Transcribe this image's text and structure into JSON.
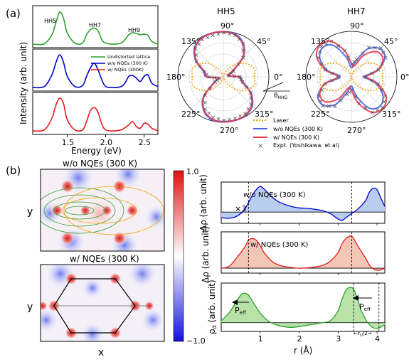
{
  "panel_a": {
    "label": "(a)",
    "ylabel": "Intensity (arb. unit)",
    "xlabel": "Energy (eV)",
    "peak_labels": [
      "HH5",
      "HH7",
      "HH9"
    ],
    "legend": [
      "Undistorted lattice",
      "w/o NQEs (300 K)",
      "w/ NQEs (300K)"
    ],
    "polar_titles": [
      "HH5",
      "HH7"
    ],
    "polar_legend": [
      "Laser",
      "w/o NQEs (300 K)",
      "w/ NQEs (300 K)",
      "Expt. (Yoshikawa. et al)"
    ],
    "angle_labels": [
      "0°",
      "45°",
      "90°",
      "135°",
      "180°",
      "225°",
      "270°",
      "315°"
    ],
    "theta_label": "θ",
    "theta_sub": "HHG"
  },
  "panel_b": {
    "label": "(b)",
    "map_titles": [
      "w/o NQEs (300 K)",
      "w/ NQEs (300 K)"
    ],
    "axis_y": "y",
    "axis_x": "x",
    "colorbar_label": "Δρ (arb. unit)",
    "colorbar_ticks": [
      "1.0",
      "−1.0"
    ],
    "line_titles": [
      "w/o NQEs (300 K)",
      "w/ NQEs (300 K)"
    ],
    "scale_note": "×3",
    "ylabel_top": "Δρ (arb. unit)",
    "ylabel_bottom_main": "ρ",
    "ylabel_bottom_sub": "d",
    "ylabel_bottom_rest": " (arb. unit)",
    "xlabel": "r (Å)",
    "peff_main": "P",
    "peff_sub": "eff",
    "rcl_main": "←r",
    "rcl_sub": "cl",
    "rcl_rest": "/2→"
  },
  "chart_data": [
    {
      "type": "line",
      "xlabel": "Energy (eV)",
      "ylabel": "Intensity (arb. unit)",
      "x_ticks": [
        "1.5",
        "2.0",
        "2.5"
      ],
      "xlim": [
        1.05,
        2.68
      ],
      "series": [
        {
          "name": "Undistorted lattice",
          "color": "#2ca02c",
          "x": [
            1.05,
            1.2,
            1.3,
            1.35,
            1.4,
            1.45,
            1.5,
            1.6,
            1.7,
            1.75,
            1.8,
            1.85,
            1.9,
            1.95,
            2.0,
            2.1,
            2.2,
            2.25,
            2.3,
            2.35,
            2.4,
            2.45,
            2.5,
            2.55,
            2.6,
            2.68
          ],
          "y": [
            0.02,
            0.03,
            0.3,
            0.65,
            0.98,
            0.8,
            0.35,
            0.05,
            0.05,
            0.3,
            0.45,
            0.5,
            0.42,
            0.15,
            0.05,
            0.02,
            0.05,
            0.15,
            0.3,
            0.36,
            0.34,
            0.3,
            0.32,
            0.28,
            0.1,
            0.02
          ]
        },
        {
          "name": "w/o NQEs (300 K)",
          "color": "#0000cc",
          "x": [
            1.05,
            1.2,
            1.3,
            1.35,
            1.4,
            1.45,
            1.5,
            1.6,
            1.7,
            1.75,
            1.8,
            1.85,
            1.9,
            1.95,
            2.0,
            2.1,
            2.2,
            2.25,
            2.3,
            2.35,
            2.4,
            2.45,
            2.5,
            2.55,
            2.6,
            2.68
          ],
          "y": [
            0.02,
            0.05,
            0.4,
            0.75,
            1.0,
            0.78,
            0.35,
            0.05,
            0.08,
            0.35,
            0.6,
            0.75,
            0.55,
            0.25,
            0.05,
            0.02,
            0.05,
            0.15,
            0.35,
            0.38,
            0.3,
            0.2,
            0.35,
            0.4,
            0.15,
            0.05
          ]
        },
        {
          "name": "w/ NQEs (300K)",
          "color": "#e31a1c",
          "x": [
            1.05,
            1.2,
            1.3,
            1.35,
            1.4,
            1.45,
            1.5,
            1.6,
            1.7,
            1.75,
            1.8,
            1.85,
            1.9,
            1.95,
            2.0,
            2.1,
            2.2,
            2.25,
            2.3,
            2.35,
            2.4,
            2.45,
            2.5,
            2.55,
            2.6,
            2.68
          ],
          "y": [
            0.02,
            0.05,
            0.4,
            0.78,
            1.0,
            0.85,
            0.35,
            0.05,
            0.05,
            0.3,
            0.62,
            0.72,
            0.58,
            0.22,
            0.05,
            0.02,
            0.05,
            0.12,
            0.2,
            0.3,
            0.15,
            0.1,
            0.25,
            0.22,
            0.1,
            0.02
          ]
        }
      ]
    },
    {
      "type": "line",
      "title": "HH5",
      "polar": true,
      "angle_unit": "degrees",
      "angles": [
        0,
        15,
        30,
        45,
        60,
        75,
        90,
        105,
        120,
        135,
        150,
        165,
        180,
        195,
        210,
        225,
        240,
        255,
        270,
        285,
        300,
        315,
        330,
        345,
        360
      ],
      "series": [
        {
          "name": "w/o NQEs (300 K)",
          "color": "#4a63e8",
          "r": [
            0.38,
            0.1,
            0.22,
            0.62,
            0.86,
            0.98,
            0.98,
            0.99,
            0.98,
            0.9,
            0.7,
            0.45,
            0.38,
            0.1,
            0.22,
            0.62,
            0.86,
            0.98,
            0.98,
            0.99,
            0.98,
            0.9,
            0.7,
            0.45,
            0.38
          ]
        },
        {
          "name": "w/ NQEs (300 K)",
          "color": "#e8374c",
          "r": [
            0.36,
            0.1,
            0.2,
            0.6,
            0.84,
            0.96,
            0.99,
            0.99,
            0.97,
            0.88,
            0.68,
            0.42,
            0.36,
            0.1,
            0.2,
            0.6,
            0.84,
            0.96,
            0.99,
            0.99,
            0.97,
            0.88,
            0.68,
            0.42,
            0.36
          ]
        },
        {
          "name": "Laser",
          "color": "#f2a100",
          "r": [
            0.68,
            0.7,
            0.58,
            0.4,
            0.18,
            0.05,
            0.02,
            0.05,
            0.18,
            0.4,
            0.58,
            0.7,
            0.68,
            0.7,
            0.58,
            0.4,
            0.18,
            0.05,
            0.02,
            0.05,
            0.18,
            0.4,
            0.58,
            0.7,
            0.68
          ]
        },
        {
          "name": "Expt. (Yoshikawa. et al)",
          "color": "#555555",
          "r": [
            0.35,
            0.12,
            0.25,
            0.6,
            0.85,
            0.95,
            0.97,
            0.95,
            0.95,
            0.88,
            0.7,
            0.45,
            0.32,
            0.1,
            0.22,
            0.58,
            0.82,
            0.92,
            0.95,
            0.95,
            0.93,
            0.85,
            0.68,
            0.42,
            0.35
          ]
        }
      ]
    },
    {
      "type": "line",
      "title": "HH7",
      "polar": true,
      "angle_unit": "degrees",
      "angles": [
        0,
        15,
        30,
        45,
        60,
        75,
        90,
        105,
        120,
        135,
        150,
        165,
        180,
        195,
        210,
        225,
        240,
        255,
        270,
        285,
        300,
        315,
        330,
        345,
        360
      ],
      "series": [
        {
          "name": "w/o NQEs (300 K)",
          "color": "#4a63e8",
          "r": [
            0.25,
            0.6,
            0.85,
            0.88,
            0.7,
            0.35,
            0.2,
            0.45,
            0.8,
            0.9,
            0.8,
            0.55,
            0.25,
            0.6,
            0.85,
            0.88,
            0.7,
            0.35,
            0.2,
            0.45,
            0.8,
            0.9,
            0.8,
            0.55,
            0.25
          ]
        },
        {
          "name": "w/ NQEs (300 K)",
          "color": "#e8374c",
          "r": [
            0.3,
            0.62,
            0.8,
            0.78,
            0.55,
            0.25,
            0.3,
            0.6,
            0.9,
            0.98,
            0.88,
            0.6,
            0.3,
            0.62,
            0.8,
            0.78,
            0.55,
            0.25,
            0.3,
            0.6,
            0.9,
            0.98,
            0.88,
            0.6,
            0.3
          ]
        },
        {
          "name": "Laser",
          "color": "#f2a100",
          "r": [
            0.68,
            0.7,
            0.58,
            0.4,
            0.18,
            0.05,
            0.02,
            0.05,
            0.18,
            0.4,
            0.58,
            0.7,
            0.68,
            0.7,
            0.58,
            0.4,
            0.18,
            0.05,
            0.02,
            0.05,
            0.18,
            0.4,
            0.58,
            0.7,
            0.68
          ]
        },
        {
          "name": "Expt. (Yoshikawa. et al)",
          "color": "#555555",
          "r": [
            0.3,
            0.6,
            0.85,
            0.9,
            0.75,
            0.4,
            0.28,
            0.6,
            0.9,
            0.95,
            0.85,
            0.6,
            0.3,
            0.6,
            0.85,
            0.9,
            0.75,
            0.4,
            0.28,
            0.6,
            0.9,
            0.95,
            0.85,
            0.6,
            0.3
          ]
        }
      ]
    },
    {
      "type": "area",
      "title": "w/o NQEs (300 K)",
      "ylabel": "Δρ (arb. unit)",
      "xlim": [
        0,
        4.2
      ],
      "x_ticks": [
        1,
        2,
        3,
        4
      ],
      "vlines": [
        0.7,
        3.35
      ],
      "series": [
        {
          "name": "w/o NQEs (300 K)",
          "color": "#0000cc",
          "x": [
            0,
            0.2,
            0.4,
            0.6,
            0.8,
            0.9,
            1.0,
            1.1,
            1.3,
            1.5,
            1.8,
            2.0,
            2.3,
            2.6,
            2.8,
            2.9,
            3.0,
            3.1,
            3.2,
            3.35,
            3.5,
            3.7,
            3.8,
            3.9,
            4.0,
            4.1,
            4.2
          ],
          "y": [
            -0.2,
            -0.22,
            -0.15,
            0.1,
            0.6,
            0.8,
            0.92,
            0.82,
            0.55,
            0.35,
            0.2,
            0.15,
            0.12,
            0.05,
            -0.05,
            -0.15,
            -0.25,
            -0.3,
            -0.2,
            -0.05,
            0.1,
            0.4,
            0.7,
            0.85,
            0.8,
            0.5,
            0.2
          ]
        }
      ]
    },
    {
      "type": "area",
      "title": "w/ NQEs (300 K)",
      "xlim": [
        0,
        4.2
      ],
      "x_ticks": [
        1,
        2,
        3,
        4
      ],
      "vlines": [
        0.7,
        3.35
      ],
      "series": [
        {
          "name": "w/ NQEs (300 K)",
          "color": "#e31a1c",
          "x": [
            0,
            0.2,
            0.4,
            0.6,
            0.7,
            0.8,
            0.9,
            1.0,
            1.1,
            1.3,
            1.5,
            1.8,
            2.0,
            2.3,
            2.6,
            2.8,
            3.0,
            3.1,
            3.2,
            3.3,
            3.35,
            3.4,
            3.5,
            3.7,
            3.8,
            3.9,
            4.0,
            4.1,
            4.2
          ],
          "y": [
            0,
            0.05,
            0.3,
            0.6,
            0.8,
            0.85,
            0.8,
            0.65,
            0.45,
            0.2,
            0.08,
            0.02,
            0.0,
            0.02,
            0.08,
            0.2,
            0.45,
            0.7,
            0.85,
            0.92,
            0.92,
            0.85,
            0.65,
            0.3,
            0.1,
            -0.02,
            -0.06,
            -0.05,
            0.0
          ]
        }
      ]
    },
    {
      "type": "area",
      "ylabel": "ρd (arb. unit)",
      "xlabel": "r (Å)",
      "xlim": [
        0,
        4.2
      ],
      "x_ticks": [
        1,
        2,
        3,
        4
      ],
      "x_ticklabels": [
        "1",
        "2",
        "3",
        "4"
      ],
      "vlines": [
        3.4,
        4.05
      ],
      "series": [
        {
          "name": "ρd",
          "color": "#2ca02c",
          "x": [
            0,
            0.2,
            0.4,
            0.5,
            0.6,
            0.7,
            0.8,
            1.0,
            1.2,
            1.4,
            1.6,
            1.8,
            2.0,
            2.3,
            2.6,
            2.8,
            3.0,
            3.1,
            3.2,
            3.3,
            3.4,
            3.5,
            3.6,
            3.8,
            4.0,
            4.2
          ],
          "y": [
            0.05,
            0.25,
            0.55,
            0.7,
            0.75,
            0.7,
            0.55,
            0.25,
            0.05,
            -0.05,
            -0.1,
            -0.12,
            -0.1,
            -0.05,
            0.0,
            0.05,
            0.3,
            0.6,
            0.82,
            0.9,
            0.85,
            0.6,
            0.3,
            -0.05,
            -0.15,
            -0.05
          ]
        }
      ]
    }
  ]
}
